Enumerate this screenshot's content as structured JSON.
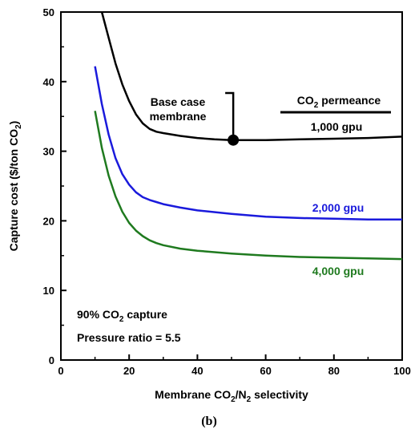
{
  "chart_data": {
    "type": "line",
    "title": "",
    "xlabel": {
      "a": "Membrane CO",
      "sub1": "2",
      "b": "/N",
      "sub2": "2",
      "c": " selectivity"
    },
    "ylabel": {
      "a": "Capture cost ($/ton CO",
      "sub": "2",
      "b": ")"
    },
    "xlim": [
      0,
      100
    ],
    "ylim": [
      0,
      50
    ],
    "xticks": [
      "0",
      "20",
      "40",
      "60",
      "80",
      "100"
    ],
    "yticks": [
      "0",
      "10",
      "20",
      "30",
      "40",
      "50"
    ],
    "grid": false,
    "legend_title": {
      "a": "CO",
      "sub": "2",
      "b": " permeance"
    },
    "series": [
      {
        "name": "1,000 gpu",
        "color": "#000000",
        "x": [
          12,
          14,
          16,
          18,
          20,
          22,
          24,
          26,
          28,
          30,
          35,
          40,
          45,
          50,
          55,
          60,
          70,
          80,
          90,
          100
        ],
        "y": [
          50,
          46.3,
          42.6,
          39.6,
          37.2,
          35.3,
          34.0,
          33.2,
          32.8,
          32.6,
          32.2,
          31.9,
          31.7,
          31.6,
          31.6,
          31.6,
          31.7,
          31.8,
          31.9,
          32.1
        ]
      },
      {
        "name": "2,000 gpu",
        "color": "#1a1adc",
        "x": [
          10,
          12,
          14,
          16,
          18,
          20,
          22,
          24,
          26,
          28,
          30,
          35,
          40,
          50,
          60,
          70,
          80,
          90,
          100
        ],
        "y": [
          42.2,
          36.8,
          32.4,
          29.0,
          26.7,
          25.2,
          24.1,
          23.4,
          23.0,
          22.7,
          22.4,
          21.9,
          21.5,
          21.0,
          20.6,
          20.4,
          20.3,
          20.2,
          20.2
        ]
      },
      {
        "name": "4,000 gpu",
        "color": "#1f7a1f",
        "x": [
          10,
          12,
          14,
          16,
          18,
          20,
          22,
          24,
          26,
          28,
          30,
          35,
          40,
          50,
          60,
          70,
          80,
          90,
          100
        ],
        "y": [
          35.8,
          30.5,
          26.5,
          23.5,
          21.3,
          19.7,
          18.6,
          17.8,
          17.2,
          16.8,
          16.5,
          16.0,
          15.7,
          15.3,
          15.0,
          14.8,
          14.7,
          14.6,
          14.5
        ]
      }
    ],
    "annotations": {
      "base_case_line1": "Base case",
      "base_case_line2": "membrane",
      "base_case_point": {
        "x": 50.5,
        "y": 31.6
      },
      "capture": {
        "a": "90% CO",
        "sub": "2",
        "b": " capture"
      },
      "pressure": "Pressure ratio = 5.5"
    },
    "caption": "(b)"
  }
}
